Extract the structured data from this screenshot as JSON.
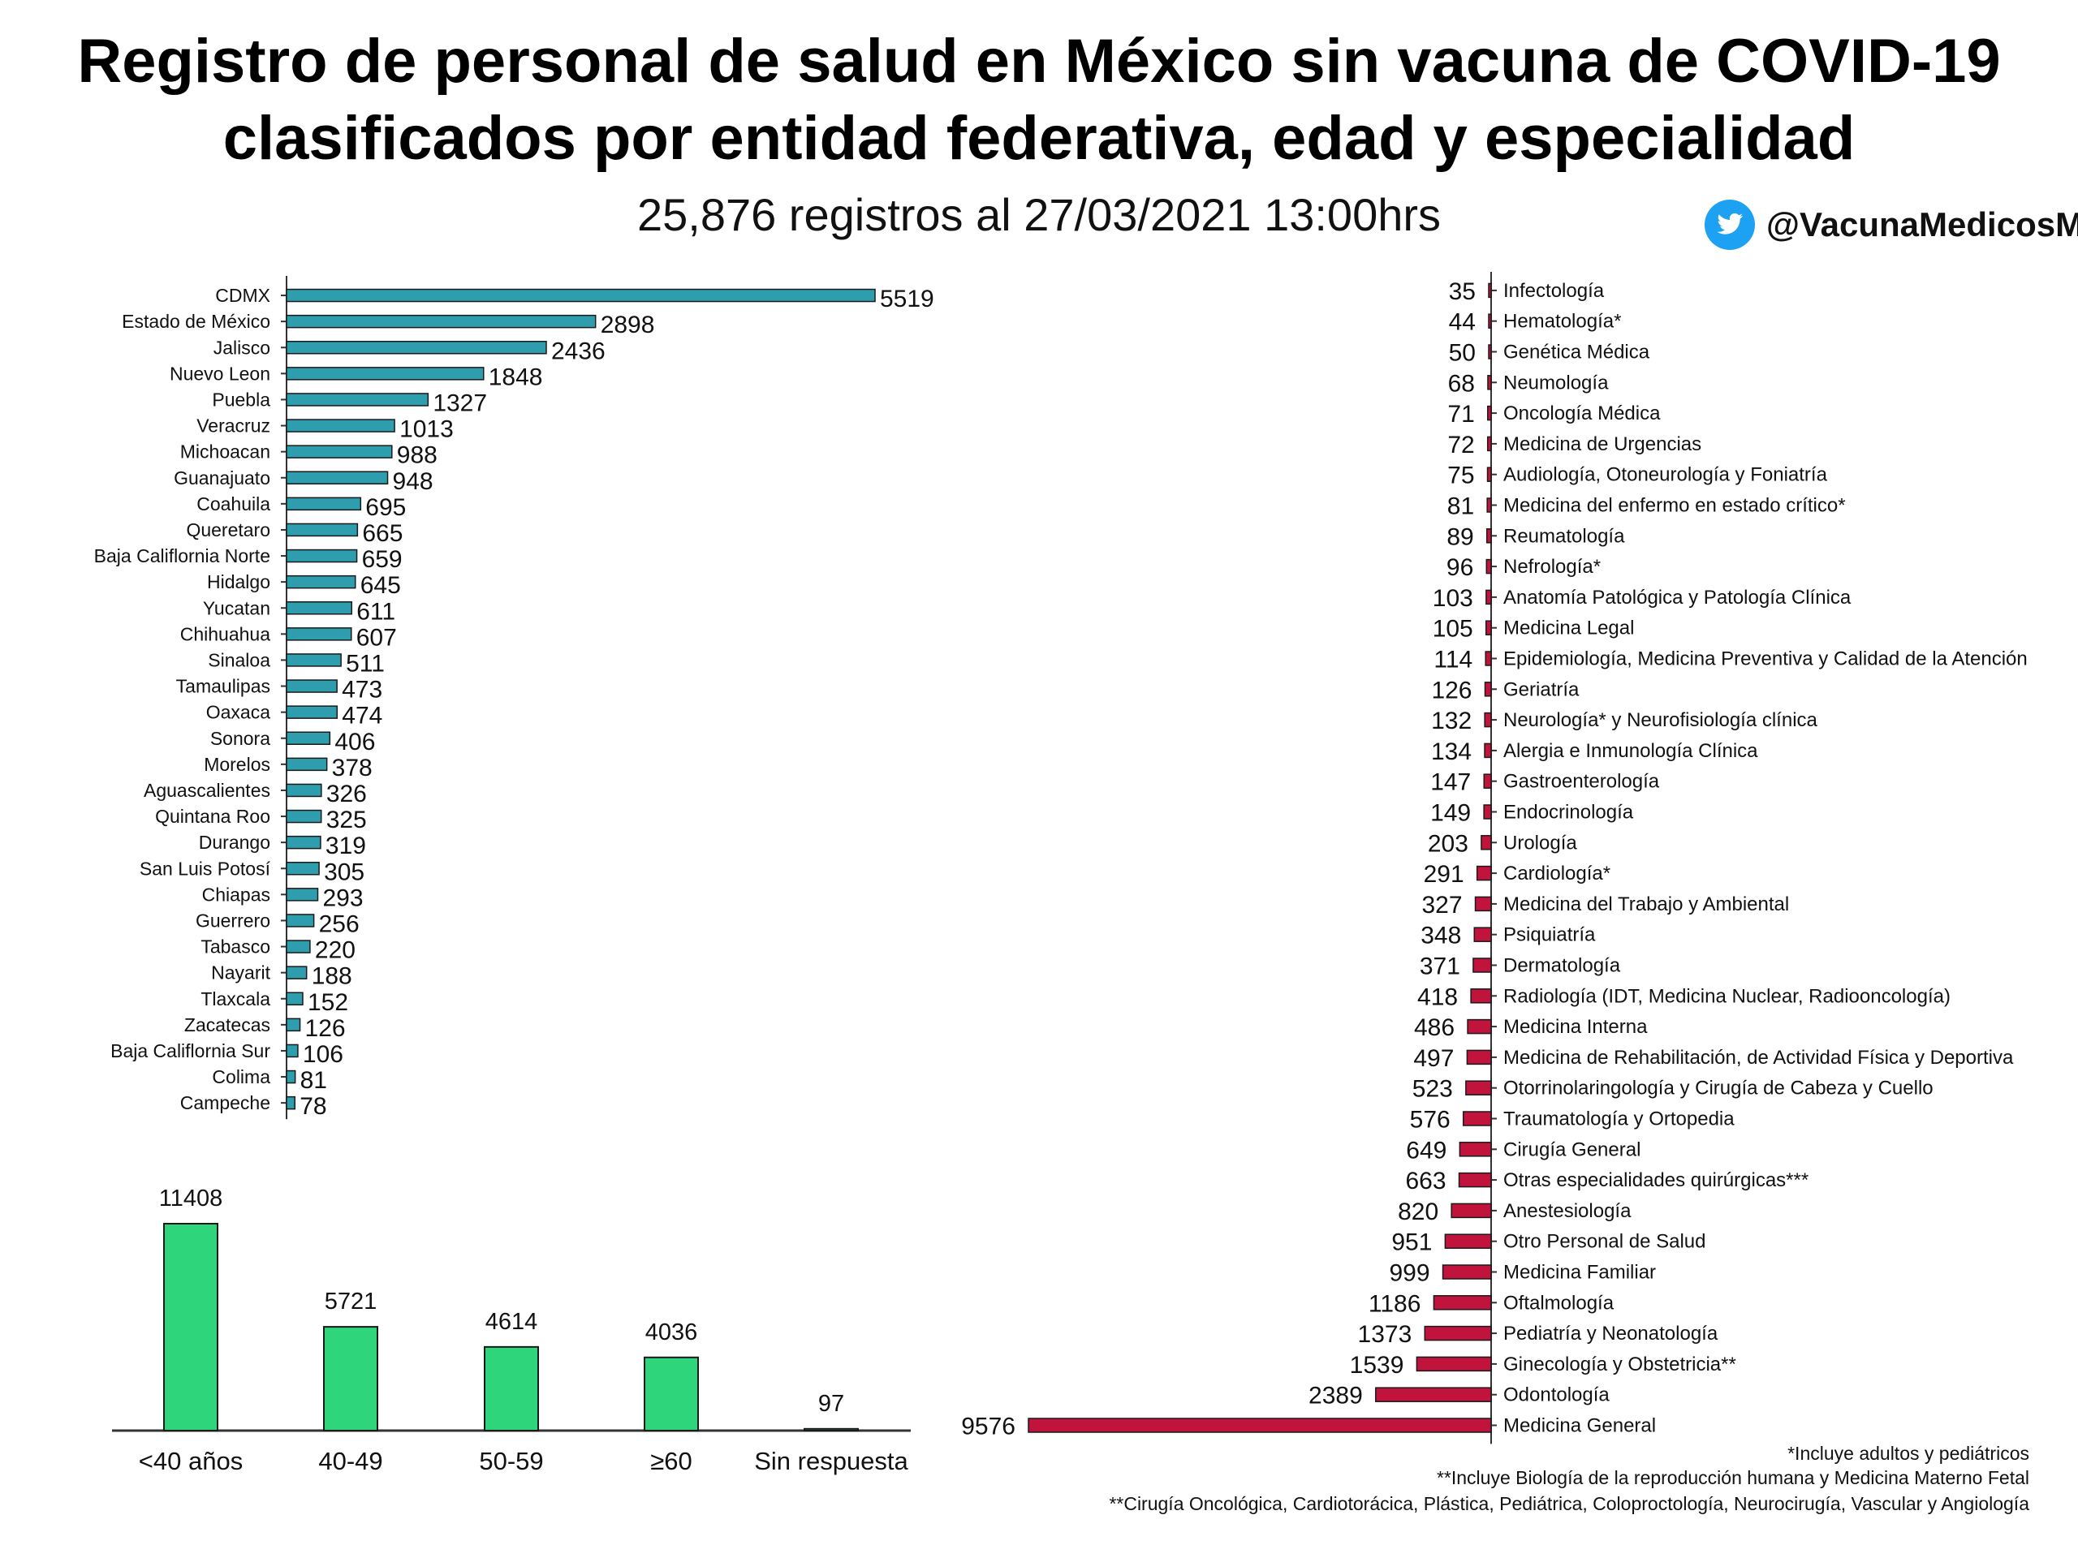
{
  "header": {
    "title_line1": "Registro de personal de salud en México sin vacuna de COVID-19",
    "title_line2": "clasificados por entidad federativa, edad y especialidad",
    "subtitle": "25,876 registros al 27/03/2021 13:00hrs",
    "twitter_handle": "@VacunaMedicosMX",
    "twitter_color": "#1DA1F2"
  },
  "footnotes": [
    "*Incluye adultos y pediátricos",
    "**Incluye Biología de la reproducción humana y Medicina Materno Fetal",
    "**Cirugía Oncológica, Cardiotorácica, Plástica, Pediátrica, Coloproctología, Neurocirugía, Vascular y Angiología"
  ],
  "chart_data": [
    {
      "type": "bar",
      "orientation": "horizontal",
      "color": "#2E9EAE",
      "categories": [
        "CDMX",
        "Estado de México",
        "Jalisco",
        "Nuevo Leon",
        "Puebla",
        "Veracruz",
        "Michoacan",
        "Guanajuato",
        "Coahuila",
        "Queretaro",
        "Baja Califlornia Norte",
        "Hidalgo",
        "Yucatan",
        "Chihuahua",
        "Sinaloa",
        "Tamaulipas",
        "Oaxaca",
        "Sonora",
        "Morelos",
        "Aguascalientes",
        "Quintana Roo",
        "Durango",
        "San Luis Potosí",
        "Chiapas",
        "Guerrero",
        "Tabasco",
        "Nayarit",
        "Tlaxcala",
        "Zacatecas",
        "Baja Califlornia Sur",
        "Colima",
        "Campeche"
      ],
      "values": [
        5519,
        2898,
        2436,
        1848,
        1327,
        1013,
        988,
        948,
        695,
        665,
        659,
        645,
        611,
        607,
        511,
        473,
        474,
        406,
        378,
        326,
        325,
        319,
        305,
        293,
        256,
        220,
        188,
        152,
        126,
        106,
        81,
        78
      ]
    },
    {
      "type": "bar",
      "orientation": "vertical",
      "color": "#2FD57A",
      "categories": [
        "<40 años",
        "40-49",
        "50-59",
        "≥60",
        "Sin respuesta"
      ],
      "values": [
        11408,
        5721,
        4614,
        4036,
        97
      ],
      "ylim": [
        0,
        12500
      ]
    },
    {
      "type": "bar",
      "orientation": "horizontal",
      "direction": "leftward",
      "color": "#C0143C",
      "categories": [
        "Infectología",
        "Hematología*",
        "Genética Médica",
        "Neumología",
        "Oncología Médica",
        "Medicina de Urgencias",
        "Audiología, Otoneurología y Foniatría",
        "Medicina del enfermo en estado crítico*",
        "Reumatología",
        "Nefrología*",
        "Anatomía Patológica y Patología Clínica",
        "Medicina Legal",
        "Epidemiología, Medicina Preventiva y Calidad de la Atención",
        "Geriatría",
        "Neurología* y Neurofisiología clínica",
        "Alergia e Inmunología Clínica",
        "Gastroenterología",
        "Endocrinología",
        "Urología",
        "Cardiología*",
        "Medicina del Trabajo y Ambiental",
        "Psiquiatría",
        "Dermatología",
        "Radiología (IDT, Medicina Nuclear, Radiooncología)",
        "Medicina Interna",
        "Medicina de Rehabilitación, de Actividad Física y Deportiva",
        "Otorrinolaringología y Cirugía de Cabeza y Cuello",
        "Traumatología y Ortopedia",
        "Cirugía General",
        "Otras especialidades quirúrgicas***",
        "Anestesiología",
        "Otro Personal de Salud",
        "Medicina Familiar",
        "Oftalmología",
        "Pediatría y Neonatología",
        "Ginecología y Obstetricia**",
        "Odontología",
        "Medicina General"
      ],
      "values": [
        35,
        44,
        50,
        68,
        71,
        72,
        75,
        81,
        89,
        96,
        103,
        105,
        114,
        126,
        132,
        134,
        147,
        149,
        203,
        291,
        327,
        348,
        371,
        418,
        486,
        497,
        523,
        576,
        649,
        663,
        820,
        951,
        999,
        1186,
        1373,
        1539,
        2389,
        9576
      ]
    }
  ]
}
